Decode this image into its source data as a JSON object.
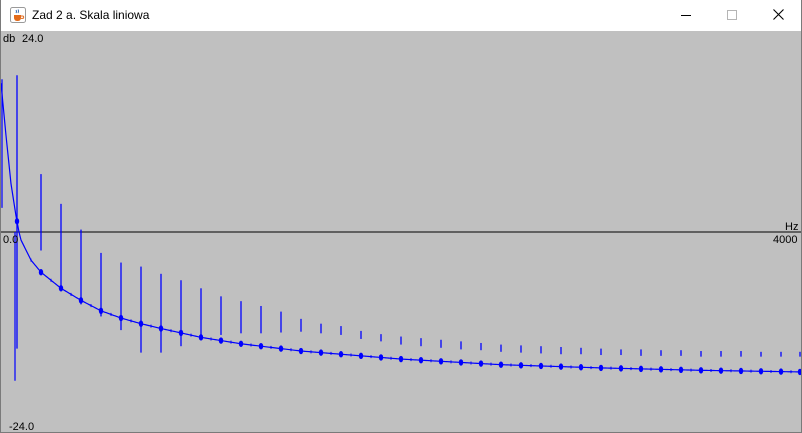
{
  "window": {
    "title": "Zad 2 a. Skala liniowa",
    "icons": {
      "app": "java-cup-icon",
      "minimize": "minimize-icon",
      "maximize": "maximize-icon",
      "close": "close-icon"
    }
  },
  "chart_data": {
    "type": "line",
    "title": "",
    "ylabel": "db",
    "xlabel": "Hz",
    "ylim": [
      -24.0,
      24.0
    ],
    "xlim": [
      0.0,
      4000
    ],
    "tick_labels": {
      "ymax": "24.0",
      "ymin": "-24.0",
      "xmin": "0.0",
      "xmax": "4000"
    },
    "grid": false,
    "series_color": "#0000ff",
    "axis_color": "#000000",
    "background": "#c0c0c0",
    "baseline_envelope": [
      [
        0,
        18.5
      ],
      [
        25,
        12.0
      ],
      [
        50,
        6.0
      ],
      [
        75,
        2.0
      ],
      [
        90,
        0.0
      ],
      [
        100,
        -1.0
      ],
      [
        150,
        -3.5
      ],
      [
        200,
        -5.0
      ],
      [
        300,
        -7.0
      ],
      [
        400,
        -8.5
      ],
      [
        500,
        -9.8
      ],
      [
        600,
        -10.7
      ],
      [
        700,
        -11.4
      ],
      [
        800,
        -12.0
      ],
      [
        1000,
        -13.1
      ],
      [
        1200,
        -13.9
      ],
      [
        1500,
        -14.8
      ],
      [
        2000,
        -15.8
      ],
      [
        2500,
        -16.5
      ],
      [
        3000,
        -16.9
      ],
      [
        3500,
        -17.2
      ],
      [
        4000,
        -17.4
      ]
    ],
    "spikes": [
      {
        "x": 80,
        "top": 19.5,
        "bottom": -14.5
      },
      {
        "x": 200,
        "top": 7.2,
        "bottom": -2.3
      },
      {
        "x": 300,
        "top": 3.5,
        "bottom": -7.3
      },
      {
        "x": 400,
        "top": 0.3,
        "bottom": -9.0
      },
      {
        "x": 500,
        "top": -2.6,
        "bottom": -10.5
      },
      {
        "x": 600,
        "top": -3.8,
        "bottom": -12.2
      },
      {
        "x": 700,
        "top": -4.3,
        "bottom": -15.0
      },
      {
        "x": 800,
        "top": -5.2,
        "bottom": -15.0
      },
      {
        "x": 900,
        "top": -6.0,
        "bottom": -14.2
      },
      {
        "x": 1000,
        "top": -7.0,
        "bottom": -13.0
      },
      {
        "x": 1100,
        "top": -8.0,
        "bottom": -12.8
      },
      {
        "x": 1200,
        "top": -8.6,
        "bottom": -12.6
      },
      {
        "x": 1300,
        "top": -9.2,
        "bottom": -12.6
      },
      {
        "x": 1400,
        "top": -9.9,
        "bottom": -12.5
      },
      {
        "x": 1500,
        "top": -10.8,
        "bottom": -12.4
      },
      {
        "x": 1600,
        "top": -11.4,
        "bottom": -12.6
      },
      {
        "x": 1700,
        "top": -11.7,
        "bottom": -12.8
      },
      {
        "x": 1800,
        "top": -12.3,
        "bottom": -13.3
      },
      {
        "x": 1900,
        "top": -12.7,
        "bottom": -13.6
      },
      {
        "x": 2000,
        "top": -13.0,
        "bottom": -14.0
      },
      {
        "x": 2100,
        "top": -13.2,
        "bottom": -14.2
      },
      {
        "x": 2200,
        "top": -13.4,
        "bottom": -14.4
      },
      {
        "x": 2300,
        "top": -13.6,
        "bottom": -14.6
      },
      {
        "x": 2400,
        "top": -13.8,
        "bottom": -14.7
      },
      {
        "x": 2500,
        "top": -14.0,
        "bottom": -14.9
      },
      {
        "x": 2600,
        "top": -14.1,
        "bottom": -15.0
      },
      {
        "x": 2700,
        "top": -14.2,
        "bottom": -15.1
      },
      {
        "x": 2800,
        "top": -14.3,
        "bottom": -15.2
      },
      {
        "x": 2900,
        "top": -14.4,
        "bottom": -15.2
      },
      {
        "x": 3000,
        "top": -14.5,
        "bottom": -15.3
      },
      {
        "x": 3100,
        "top": -14.6,
        "bottom": -15.3
      },
      {
        "x": 3200,
        "top": -14.6,
        "bottom": -15.4
      },
      {
        "x": 3300,
        "top": -14.7,
        "bottom": -15.4
      },
      {
        "x": 3400,
        "top": -14.7,
        "bottom": -15.4
      },
      {
        "x": 3500,
        "top": -14.8,
        "bottom": -15.5
      },
      {
        "x": 3600,
        "top": -14.8,
        "bottom": -15.5
      },
      {
        "x": 3700,
        "top": -14.8,
        "bottom": -15.5
      },
      {
        "x": 3800,
        "top": -14.9,
        "bottom": -15.5
      },
      {
        "x": 3900,
        "top": -14.9,
        "bottom": -15.5
      },
      {
        "x": 4000,
        "top": -14.9,
        "bottom": -15.5
      }
    ],
    "initial_dip": {
      "x": 70,
      "top": 0.0,
      "bottom": -18.5
    }
  }
}
